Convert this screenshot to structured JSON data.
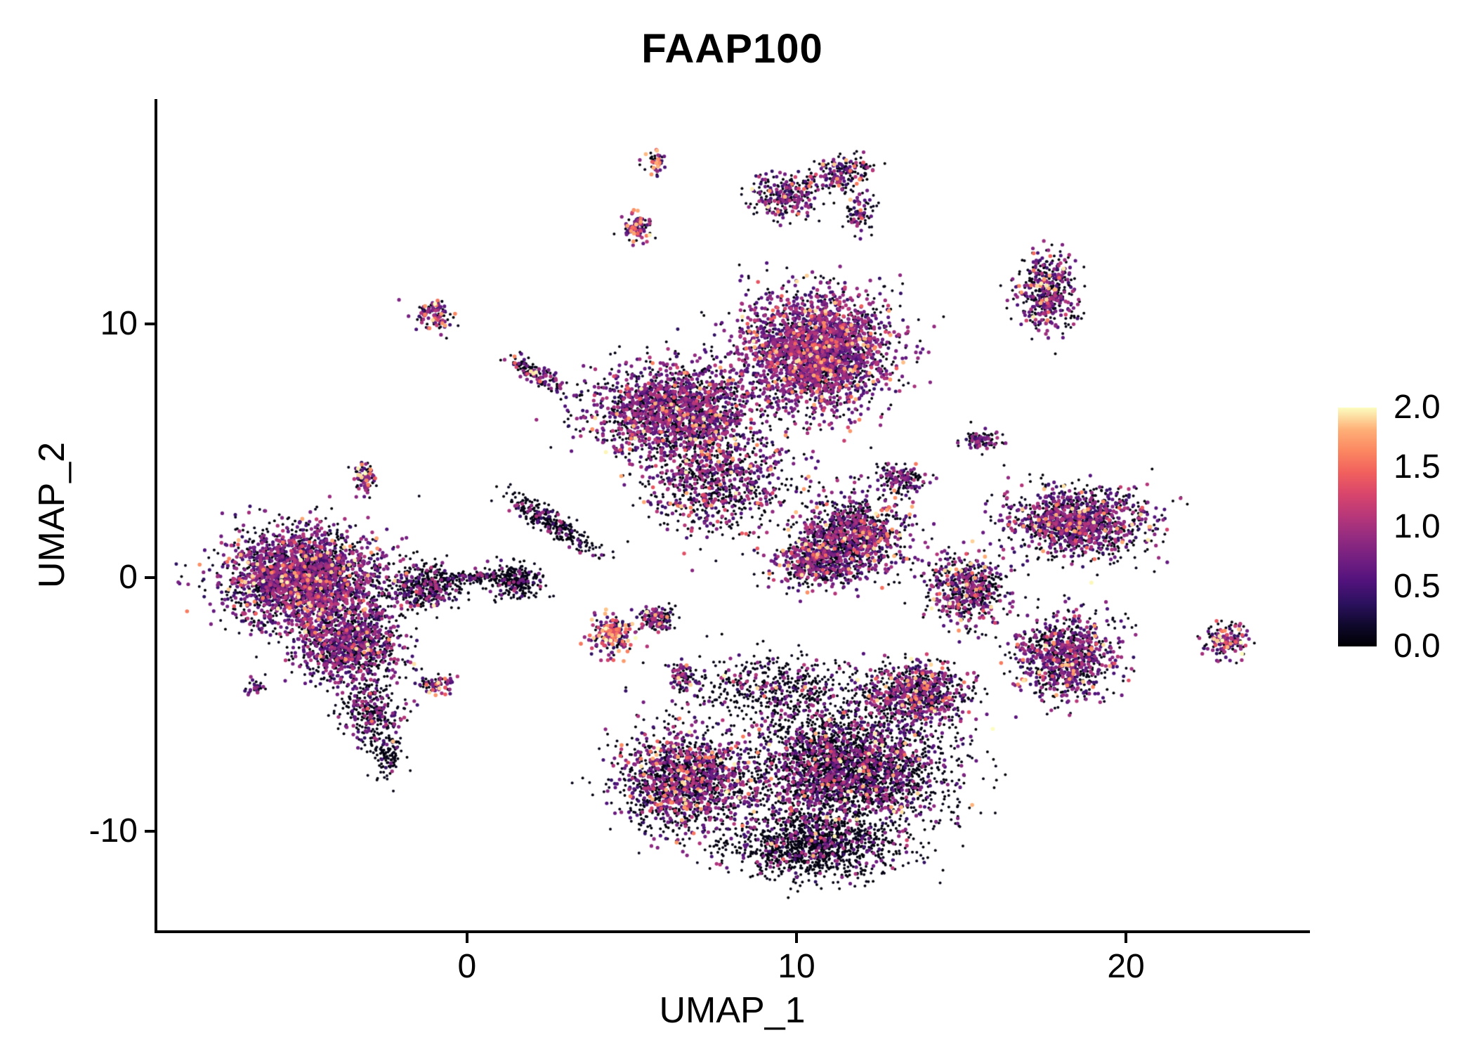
{
  "title": "FAAP100",
  "axes": {
    "x": {
      "label": "UMAP_1",
      "range": [
        -9.4,
        25.5
      ],
      "ticks": [
        0,
        10,
        20
      ]
    },
    "y": {
      "label": "UMAP_2",
      "range": [
        -13.9,
        18.8
      ],
      "ticks": [
        10,
        0,
        -10
      ]
    }
  },
  "legend": {
    "ticks": [
      "2.0",
      "1.5",
      "1.0",
      "0.5",
      "0.0"
    ],
    "min": 0.0,
    "max": 2.0
  },
  "colors": {
    "background": "#ffffff",
    "axis": "#000000",
    "text": "#000000",
    "colormap": [
      "#000004",
      "#10092d",
      "#2c115f",
      "#51127c",
      "#721f81",
      "#932b80",
      "#b73779",
      "#d8456c",
      "#f1605d",
      "#fb8761",
      "#feb078",
      "#fcfdbf"
    ]
  },
  "chart_data": {
    "type": "scatter",
    "title": "FAAP100",
    "xlabel": "UMAP_1",
    "ylabel": "UMAP_2",
    "xlim": [
      -9.4,
      25.5
    ],
    "ylim": [
      -13.9,
      18.8
    ],
    "grid": false,
    "legend_position": "right",
    "color_scale": {
      "name": "magma",
      "domain": [
        0,
        2
      ],
      "label_values": [
        0.0,
        0.5,
        1.0,
        1.5,
        2.0
      ]
    },
    "point_radius_px": [
      2.0,
      2.9
    ],
    "clusters": [
      {
        "name": "left-main",
        "cx": -5.0,
        "cy": 0.0,
        "rx": 2.1,
        "ry": 1.7,
        "n": 2500,
        "frac": [
          0.45,
          0.5,
          0.05
        ]
      },
      {
        "name": "left-lower",
        "cx": -3.6,
        "cy": -2.6,
        "rx": 1.5,
        "ry": 1.4,
        "n": 1100,
        "frac": [
          0.55,
          0.42,
          0.03
        ]
      },
      {
        "name": "left-tail",
        "cx": -2.9,
        "cy": -5.3,
        "rx": 0.8,
        "ry": 1.1,
        "n": 300,
        "frac": [
          0.7,
          0.29,
          0.01
        ]
      },
      {
        "name": "left-tail-tip",
        "cx": -2.4,
        "cy": -7.0,
        "rx": 0.45,
        "ry": 0.8,
        "n": 110,
        "frac": [
          0.78,
          0.22,
          0.0
        ]
      },
      {
        "name": "left-east",
        "cx": -1.3,
        "cy": -0.4,
        "rx": 1.0,
        "ry": 0.8,
        "n": 420,
        "frac": [
          0.72,
          0.27,
          0.01
        ]
      },
      {
        "name": "left-small-top",
        "cx": -3.1,
        "cy": 3.9,
        "rx": 0.35,
        "ry": 0.55,
        "n": 80,
        "frac": [
          0.45,
          0.45,
          0.1
        ]
      },
      {
        "name": "left-dot",
        "cx": -6.4,
        "cy": -4.3,
        "rx": 0.3,
        "ry": 0.25,
        "n": 30,
        "frac": [
          0.6,
          0.4,
          0.0
        ]
      },
      {
        "name": "bridge-center",
        "cx": 0.2,
        "cy": 0.0,
        "rx": 1.0,
        "ry": 0.25,
        "n": 120,
        "frac": [
          0.85,
          0.15,
          0.0
        ]
      },
      {
        "name": "center-blob",
        "cx": 1.5,
        "cy": -0.1,
        "rx": 0.7,
        "ry": 0.6,
        "n": 260,
        "frac": [
          0.85,
          0.15,
          0.0
        ]
      },
      {
        "name": "center-streak",
        "cx": 2.5,
        "cy": 2.2,
        "rx": 1.5,
        "ry": 0.35,
        "rot": -38,
        "n": 300,
        "frac": [
          0.85,
          0.15,
          0.0
        ]
      },
      {
        "name": "mini-top-left",
        "cx": -1.0,
        "cy": 10.3,
        "rx": 0.5,
        "ry": 0.55,
        "n": 120,
        "frac": [
          0.4,
          0.5,
          0.1
        ]
      },
      {
        "name": "mini-streak",
        "cx": 2.1,
        "cy": 8.0,
        "rx": 0.9,
        "ry": 0.3,
        "rot": -40,
        "n": 140,
        "frac": [
          0.5,
          0.42,
          0.08
        ]
      },
      {
        "name": "top-main",
        "cx": 10.6,
        "cy": 8.9,
        "rx": 2.0,
        "ry": 2.1,
        "n": 2600,
        "frac": [
          0.35,
          0.58,
          0.07
        ]
      },
      {
        "name": "top-west",
        "cx": 6.3,
        "cy": 6.6,
        "rx": 2.3,
        "ry": 1.6,
        "n": 1800,
        "frac": [
          0.45,
          0.5,
          0.05
        ]
      },
      {
        "name": "top-south-scatter",
        "cx": 7.6,
        "cy": 3.8,
        "rx": 2.0,
        "ry": 1.9,
        "n": 900,
        "frac": [
          0.55,
          0.4,
          0.05
        ]
      },
      {
        "name": "mid-right",
        "cx": 11.8,
        "cy": 1.7,
        "rx": 1.5,
        "ry": 1.4,
        "n": 1000,
        "frac": [
          0.5,
          0.45,
          0.05
        ]
      },
      {
        "name": "mid-right-low",
        "cx": 10.6,
        "cy": 0.6,
        "rx": 1.2,
        "ry": 0.9,
        "n": 500,
        "frac": [
          0.55,
          0.4,
          0.05
        ]
      },
      {
        "name": "mid-right-wing",
        "cx": 13.2,
        "cy": 3.9,
        "rx": 0.7,
        "ry": 0.5,
        "n": 150,
        "frac": [
          0.6,
          0.38,
          0.02
        ]
      },
      {
        "name": "hot-small",
        "cx": 4.4,
        "cy": -2.3,
        "rx": 0.55,
        "ry": 0.7,
        "n": 210,
        "frac": [
          0.3,
          0.35,
          0.35
        ]
      },
      {
        "name": "hot-small-2",
        "cx": 5.8,
        "cy": -1.6,
        "rx": 0.5,
        "ry": 0.4,
        "n": 140,
        "frac": [
          0.5,
          0.4,
          0.1
        ]
      },
      {
        "name": "small-below-center",
        "cx": 6.6,
        "cy": -3.9,
        "rx": 0.4,
        "ry": 0.5,
        "n": 90,
        "frac": [
          0.6,
          0.38,
          0.02
        ]
      },
      {
        "name": "small-left-bottom",
        "cx": -0.9,
        "cy": -4.2,
        "rx": 0.5,
        "ry": 0.35,
        "n": 80,
        "frac": [
          0.5,
          0.4,
          0.1
        ]
      },
      {
        "name": "bottom-main",
        "cx": 11.5,
        "cy": -7.5,
        "rx": 2.7,
        "ry": 2.1,
        "n": 3000,
        "frac": [
          0.72,
          0.26,
          0.02
        ]
      },
      {
        "name": "bottom-west",
        "cx": 6.6,
        "cy": -8.0,
        "rx": 1.8,
        "ry": 1.8,
        "n": 1500,
        "frac": [
          0.58,
          0.36,
          0.06
        ]
      },
      {
        "name": "bottom-south",
        "cx": 10.5,
        "cy": -10.6,
        "rx": 2.2,
        "ry": 1.1,
        "n": 1200,
        "frac": [
          0.86,
          0.13,
          0.01
        ]
      },
      {
        "name": "bottom-ne-arm",
        "cx": 13.6,
        "cy": -4.6,
        "rx": 1.5,
        "ry": 1.1,
        "n": 800,
        "frac": [
          0.55,
          0.4,
          0.05
        ]
      },
      {
        "name": "bottom-top-scatter",
        "cx": 9.4,
        "cy": -4.4,
        "rx": 2.4,
        "ry": 1.2,
        "n": 500,
        "frac": [
          0.8,
          0.19,
          0.01
        ]
      },
      {
        "name": "right-inner",
        "cx": 15.2,
        "cy": -0.4,
        "rx": 1.1,
        "ry": 1.2,
        "n": 600,
        "frac": [
          0.6,
          0.35,
          0.05
        ]
      },
      {
        "name": "right-dot",
        "cx": 15.6,
        "cy": 5.4,
        "rx": 0.5,
        "ry": 0.35,
        "n": 100,
        "frac": [
          0.7,
          0.3,
          0.0
        ]
      },
      {
        "name": "right-upper",
        "cx": 18.6,
        "cy": 2.2,
        "rx": 1.9,
        "ry": 1.2,
        "n": 1200,
        "frac": [
          0.5,
          0.44,
          0.06
        ]
      },
      {
        "name": "right-lower",
        "cx": 18.2,
        "cy": -3.1,
        "rx": 1.3,
        "ry": 1.5,
        "n": 900,
        "frac": [
          0.5,
          0.44,
          0.06
        ]
      },
      {
        "name": "far-right",
        "cx": 23.0,
        "cy": -2.5,
        "rx": 0.55,
        "ry": 0.6,
        "n": 150,
        "frac": [
          0.45,
          0.45,
          0.1
        ]
      },
      {
        "name": "top-right",
        "cx": 17.6,
        "cy": 11.2,
        "rx": 0.85,
        "ry": 1.4,
        "n": 450,
        "frac": [
          0.55,
          0.4,
          0.05
        ]
      },
      {
        "name": "top-wing-a",
        "cx": 9.6,
        "cy": 15.0,
        "rx": 0.9,
        "ry": 0.8,
        "n": 250,
        "frac": [
          0.55,
          0.4,
          0.05
        ]
      },
      {
        "name": "top-wing-b",
        "cx": 11.3,
        "cy": 15.9,
        "rx": 1.1,
        "ry": 0.6,
        "rot": 20,
        "n": 200,
        "frac": [
          0.6,
          0.36,
          0.04
        ]
      },
      {
        "name": "top-wing-tail",
        "cx": 11.9,
        "cy": 14.4,
        "rx": 0.4,
        "ry": 0.7,
        "n": 80,
        "frac": [
          0.6,
          0.38,
          0.02
        ]
      },
      {
        "name": "top-tiny",
        "cx": 5.7,
        "cy": 16.4,
        "rx": 0.3,
        "ry": 0.4,
        "n": 45,
        "frac": [
          0.4,
          0.4,
          0.2
        ]
      },
      {
        "name": "top-tiny-2",
        "cx": 5.2,
        "cy": 13.8,
        "rx": 0.4,
        "ry": 0.5,
        "n": 90,
        "frac": [
          0.35,
          0.45,
          0.2
        ]
      }
    ]
  }
}
